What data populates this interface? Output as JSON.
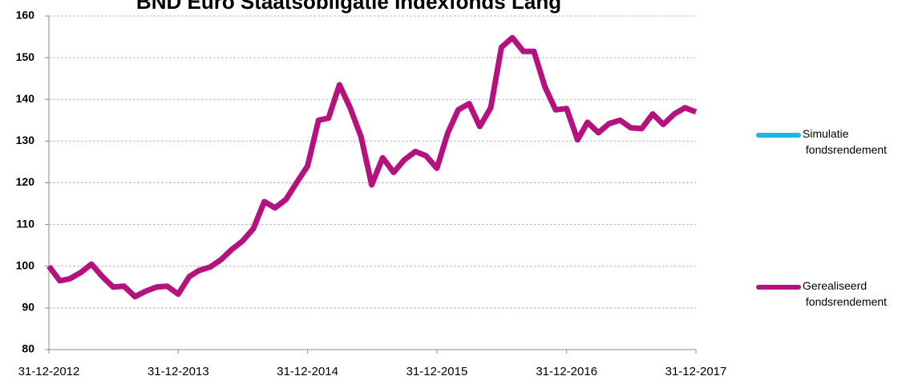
{
  "chart_data": {
    "type": "line",
    "title": "BND Euro Staatsobligatie Indexfonds Lang",
    "x": [
      "2012-12-31",
      "2013-01-31",
      "2013-02-28",
      "2013-03-31",
      "2013-04-30",
      "2013-05-31",
      "2013-06-30",
      "2013-07-31",
      "2013-08-31",
      "2013-09-30",
      "2013-10-31",
      "2013-11-30",
      "2013-12-31",
      "2014-01-31",
      "2014-02-28",
      "2014-03-31",
      "2014-04-30",
      "2014-05-31",
      "2014-06-30",
      "2014-07-31",
      "2014-08-31",
      "2014-09-30",
      "2014-10-31",
      "2014-11-30",
      "2014-12-31",
      "2015-01-31",
      "2015-02-28",
      "2015-03-31",
      "2015-04-30",
      "2015-05-31",
      "2015-06-30",
      "2015-07-31",
      "2015-08-31",
      "2015-09-30",
      "2015-10-31",
      "2015-11-30",
      "2015-12-31",
      "2016-01-31",
      "2016-02-29",
      "2016-03-31",
      "2016-04-30",
      "2016-05-31",
      "2016-06-30",
      "2016-07-31",
      "2016-08-31",
      "2016-09-30",
      "2016-10-31",
      "2016-11-30",
      "2016-12-31",
      "2017-01-31",
      "2017-02-28",
      "2017-03-31",
      "2017-04-30",
      "2017-05-31",
      "2017-06-30",
      "2017-07-31",
      "2017-08-31",
      "2017-09-30",
      "2017-10-31",
      "2017-11-30",
      "2017-12-31"
    ],
    "series": [
      {
        "name": "Simulatie fondsrendement",
        "color": "#1fb5e8",
        "values": [
          null,
          null,
          null,
          null,
          null,
          null,
          null,
          null,
          null,
          null,
          null,
          null,
          null,
          null,
          null,
          null,
          null,
          null,
          null,
          null,
          null,
          null,
          null,
          null,
          null,
          null,
          null,
          null,
          null,
          null,
          null,
          null,
          null,
          null,
          null,
          null,
          null,
          null,
          null,
          null,
          null,
          null,
          null,
          null,
          null,
          null,
          null,
          null,
          null,
          null,
          null,
          null,
          null,
          null,
          null,
          null,
          null,
          null,
          null,
          null,
          null
        ]
      },
      {
        "name": "Gerealiseerd fondsrendement",
        "color": "#b5117f",
        "values": [
          100,
          96.5,
          97,
          98.5,
          100.5,
          97.5,
          95,
          95.2,
          92.7,
          94,
          95,
          95.2,
          93.3,
          97.5,
          99,
          99.8,
          101.5,
          104,
          106,
          109,
          115.5,
          114,
          116,
          120,
          124,
          135,
          135.5,
          143.5,
          138,
          131,
          119.5,
          126,
          122.5,
          125.5,
          127.5,
          126.5,
          123.5,
          132,
          137.5,
          139,
          133.5,
          138,
          152.5,
          154.8,
          151.5,
          151.5,
          143,
          137.5,
          137.8,
          130.3,
          134.5,
          132,
          134.2,
          135,
          133.2,
          133,
          136.5,
          134,
          136.5,
          138,
          137
        ]
      }
    ],
    "xlim": [
      "2012-12-31",
      "2017-12-31"
    ],
    "xticks": [
      {
        "value": "2012-12-31",
        "label": "31-12-2012"
      },
      {
        "value": "2013-12-31",
        "label": "31-12-2013"
      },
      {
        "value": "2014-12-31",
        "label": "31-12-2014"
      },
      {
        "value": "2015-12-31",
        "label": "31-12-2015"
      },
      {
        "value": "2016-12-31",
        "label": "31-12-2016"
      },
      {
        "value": "2017-12-31",
        "label": "31-12-2017"
      }
    ],
    "ylim": [
      80,
      160
    ],
    "yticks": [
      80,
      90,
      100,
      110,
      120,
      130,
      140,
      150,
      160
    ],
    "grid": true,
    "legend": "right"
  }
}
